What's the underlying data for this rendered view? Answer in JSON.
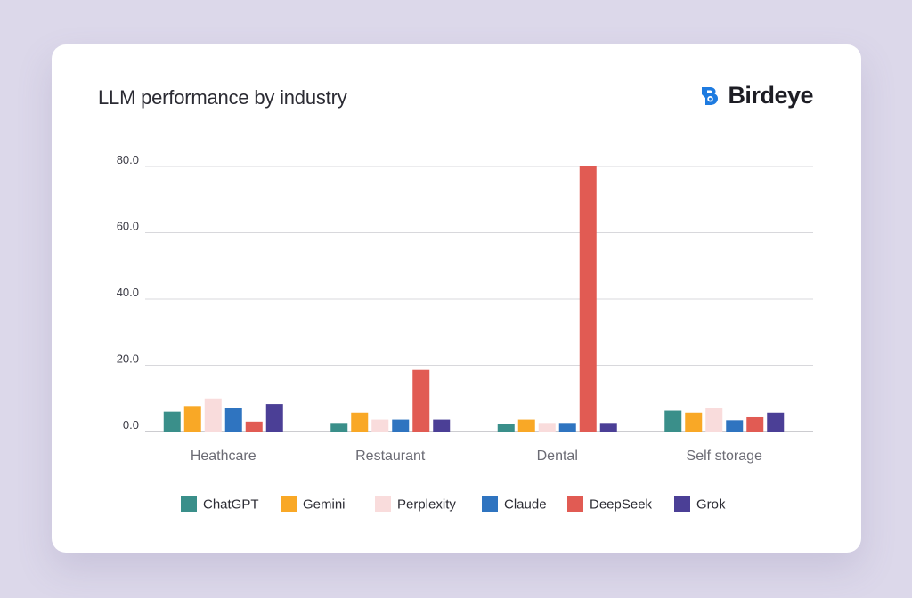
{
  "header": {
    "title": "LLM performance by industry",
    "brand": "Birdeye"
  },
  "colors": {
    "background": "#dcd8ea",
    "card": "#ffffff",
    "brand_blue": "#1e7be0",
    "grid": "#d8d8dc",
    "axis": "#9a9aa2"
  },
  "chart_data": {
    "type": "bar",
    "title": "LLM performance by industry",
    "xlabel": "",
    "ylabel": "",
    "ylim": [
      0,
      80
    ],
    "yticks": [
      0,
      20,
      40,
      60,
      80
    ],
    "ytick_labels": [
      "0.0",
      "20.0",
      "40.0",
      "60.0",
      "80.0"
    ],
    "grid": true,
    "legend_position": "bottom",
    "categories": [
      "Heathcare",
      "Restaurant",
      "Dental",
      "Self storage"
    ],
    "series": [
      {
        "name": "ChatGPT",
        "color": "#3a8f8a",
        "values": [
          6.0,
          2.6,
          2.2,
          6.3
        ]
      },
      {
        "name": "Gemini",
        "color": "#f9a826",
        "values": [
          7.7,
          5.7,
          3.6,
          5.7
        ]
      },
      {
        "name": "Perplexity",
        "color": "#f9dcdc",
        "values": [
          10.0,
          3.6,
          2.6,
          7.0
        ]
      },
      {
        "name": "Claude",
        "color": "#2f74c0",
        "values": [
          7.0,
          3.6,
          2.6,
          3.4
        ]
      },
      {
        "name": "DeepSeek",
        "color": "#e15b53",
        "values": [
          3.0,
          18.6,
          80.2,
          4.3
        ]
      },
      {
        "name": "Grok",
        "color": "#4b3f96",
        "values": [
          8.3,
          3.6,
          2.6,
          5.7
        ]
      }
    ]
  }
}
